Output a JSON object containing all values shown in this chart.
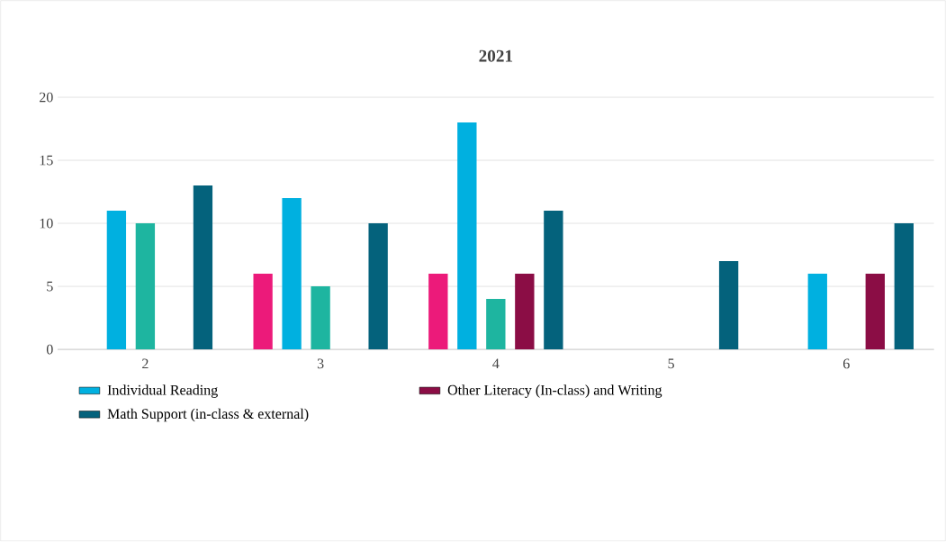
{
  "chart_data": {
    "type": "bar",
    "title": "2021",
    "categories": [
      "2",
      "3",
      "4",
      "5",
      "6"
    ],
    "series": [
      {
        "color": "#ec1a7a",
        "values": [
          null,
          6,
          6,
          null,
          null
        ]
      },
      {
        "name": "Individual Reading",
        "color": "#00b0e0",
        "values": [
          11,
          12,
          18,
          null,
          6
        ]
      },
      {
        "color": "#1eb5a0",
        "values": [
          10,
          5,
          4,
          null,
          null
        ]
      },
      {
        "name": "Other Literacy (In-class) and Writing",
        "color": "#8b0d45",
        "values": [
          null,
          null,
          6,
          null,
          6
        ]
      },
      {
        "name": "Math Support (in-class & external)",
        "color": "#04627c",
        "values": [
          13,
          10,
          11,
          7,
          10
        ]
      }
    ],
    "ylim": [
      0,
      20
    ],
    "yticks": [
      0,
      5,
      10,
      15,
      20
    ],
    "grid": "y",
    "legend": "bottom"
  }
}
